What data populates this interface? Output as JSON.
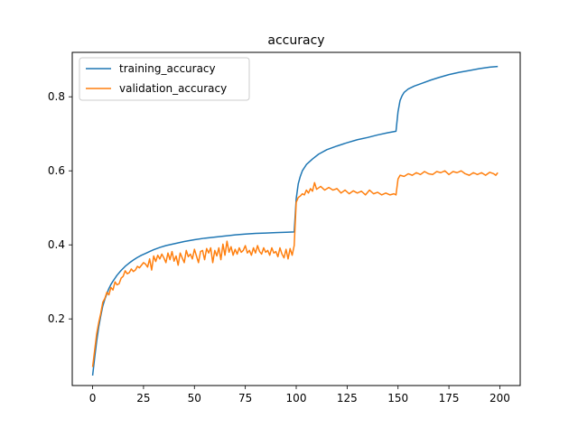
{
  "chart_data": {
    "type": "line",
    "title": "accuracy",
    "xlabel": "",
    "ylabel": "",
    "xlim": [
      -10,
      210
    ],
    "ylim": [
      0.02,
      0.92
    ],
    "xticks": [
      0,
      25,
      50,
      75,
      100,
      125,
      150,
      175,
      200
    ],
    "yticks": [
      0.2,
      0.4,
      0.6,
      0.8
    ],
    "grid": false,
    "legend_position": "upper-left",
    "series": [
      {
        "name": "training_accuracy",
        "color": "#1f77b4",
        "points": [
          [
            0,
            0.047
          ],
          [
            1,
            0.095
          ],
          [
            2,
            0.14
          ],
          [
            3,
            0.178
          ],
          [
            4,
            0.208
          ],
          [
            5,
            0.235
          ],
          [
            6,
            0.253
          ],
          [
            7,
            0.268
          ],
          [
            8,
            0.282
          ],
          [
            9,
            0.293
          ],
          [
            10,
            0.302
          ],
          [
            12,
            0.318
          ],
          [
            14,
            0.331
          ],
          [
            16,
            0.342
          ],
          [
            18,
            0.351
          ],
          [
            20,
            0.359
          ],
          [
            22,
            0.366
          ],
          [
            24,
            0.372
          ],
          [
            26,
            0.377
          ],
          [
            28,
            0.382
          ],
          [
            30,
            0.387
          ],
          [
            33,
            0.393
          ],
          [
            36,
            0.398
          ],
          [
            40,
            0.403
          ],
          [
            45,
            0.409
          ],
          [
            50,
            0.414
          ],
          [
            55,
            0.418
          ],
          [
            60,
            0.421
          ],
          [
            65,
            0.424
          ],
          [
            70,
            0.427
          ],
          [
            75,
            0.429
          ],
          [
            80,
            0.431
          ],
          [
            85,
            0.432
          ],
          [
            90,
            0.433
          ],
          [
            95,
            0.434
          ],
          [
            99,
            0.435
          ],
          [
            100,
            0.525
          ],
          [
            101,
            0.565
          ],
          [
            102,
            0.585
          ],
          [
            103,
            0.6
          ],
          [
            105,
            0.617
          ],
          [
            108,
            0.632
          ],
          [
            111,
            0.645
          ],
          [
            115,
            0.657
          ],
          [
            120,
            0.667
          ],
          [
            125,
            0.676
          ],
          [
            130,
            0.684
          ],
          [
            135,
            0.69
          ],
          [
            140,
            0.697
          ],
          [
            145,
            0.703
          ],
          [
            149,
            0.707
          ],
          [
            150,
            0.76
          ],
          [
            151,
            0.79
          ],
          [
            152,
            0.803
          ],
          [
            153,
            0.812
          ],
          [
            155,
            0.821
          ],
          [
            158,
            0.829
          ],
          [
            162,
            0.837
          ],
          [
            166,
            0.845
          ],
          [
            170,
            0.852
          ],
          [
            175,
            0.86
          ],
          [
            180,
            0.866
          ],
          [
            185,
            0.871
          ],
          [
            190,
            0.876
          ],
          [
            195,
            0.88
          ],
          [
            199,
            0.882
          ]
        ]
      },
      {
        "name": "validation_accuracy",
        "color": "#ff7f0e",
        "points": [
          [
            0,
            0.07
          ],
          [
            1,
            0.115
          ],
          [
            2,
            0.16
          ],
          [
            3,
            0.19
          ],
          [
            4,
            0.215
          ],
          [
            5,
            0.245
          ],
          [
            6,
            0.255
          ],
          [
            7,
            0.272
          ],
          [
            8,
            0.265
          ],
          [
            9,
            0.285
          ],
          [
            10,
            0.278
          ],
          [
            11,
            0.3
          ],
          [
            12,
            0.292
          ],
          [
            13,
            0.295
          ],
          [
            14,
            0.31
          ],
          [
            15,
            0.315
          ],
          [
            16,
            0.33
          ],
          [
            17,
            0.322
          ],
          [
            18,
            0.325
          ],
          [
            19,
            0.335
          ],
          [
            20,
            0.328
          ],
          [
            21,
            0.332
          ],
          [
            22,
            0.342
          ],
          [
            23,
            0.338
          ],
          [
            24,
            0.345
          ],
          [
            25,
            0.352
          ],
          [
            26,
            0.348
          ],
          [
            27,
            0.34
          ],
          [
            28,
            0.362
          ],
          [
            29,
            0.332
          ],
          [
            30,
            0.37
          ],
          [
            31,
            0.355
          ],
          [
            32,
            0.372
          ],
          [
            33,
            0.362
          ],
          [
            34,
            0.375
          ],
          [
            35,
            0.365
          ],
          [
            36,
            0.352
          ],
          [
            37,
            0.378
          ],
          [
            38,
            0.36
          ],
          [
            39,
            0.382
          ],
          [
            40,
            0.356
          ],
          [
            41,
            0.37
          ],
          [
            42,
            0.345
          ],
          [
            43,
            0.378
          ],
          [
            44,
            0.365
          ],
          [
            45,
            0.352
          ],
          [
            46,
            0.385
          ],
          [
            47,
            0.368
          ],
          [
            48,
            0.375
          ],
          [
            49,
            0.362
          ],
          [
            50,
            0.388
          ],
          [
            51,
            0.37
          ],
          [
            52,
            0.352
          ],
          [
            53,
            0.382
          ],
          [
            54,
            0.385
          ],
          [
            55,
            0.36
          ],
          [
            56,
            0.39
          ],
          [
            57,
            0.378
          ],
          [
            58,
            0.392
          ],
          [
            59,
            0.352
          ],
          [
            60,
            0.385
          ],
          [
            61,
            0.37
          ],
          [
            62,
            0.392
          ],
          [
            63,
            0.36
          ],
          [
            64,
            0.402
          ],
          [
            65,
            0.372
          ],
          [
            66,
            0.41
          ],
          [
            67,
            0.38
          ],
          [
            68,
            0.395
          ],
          [
            69,
            0.372
          ],
          [
            70,
            0.388
          ],
          [
            71,
            0.375
          ],
          [
            72,
            0.392
          ],
          [
            73,
            0.38
          ],
          [
            74,
            0.385
          ],
          [
            75,
            0.398
          ],
          [
            76,
            0.378
          ],
          [
            77,
            0.385
          ],
          [
            78,
            0.372
          ],
          [
            79,
            0.392
          ],
          [
            80,
            0.378
          ],
          [
            81,
            0.398
          ],
          [
            82,
            0.382
          ],
          [
            83,
            0.375
          ],
          [
            84,
            0.392
          ],
          [
            85,
            0.38
          ],
          [
            86,
            0.385
          ],
          [
            87,
            0.372
          ],
          [
            88,
            0.392
          ],
          [
            89,
            0.378
          ],
          [
            90,
            0.382
          ],
          [
            91,
            0.368
          ],
          [
            92,
            0.392
          ],
          [
            93,
            0.375
          ],
          [
            94,
            0.365
          ],
          [
            95,
            0.388
          ],
          [
            96,
            0.362
          ],
          [
            97,
            0.39
          ],
          [
            98,
            0.372
          ],
          [
            99,
            0.398
          ],
          [
            100,
            0.515
          ],
          [
            101,
            0.528
          ],
          [
            102,
            0.532
          ],
          [
            103,
            0.538
          ],
          [
            104,
            0.535
          ],
          [
            105,
            0.548
          ],
          [
            106,
            0.54
          ],
          [
            107,
            0.552
          ],
          [
            108,
            0.545
          ],
          [
            109,
            0.568
          ],
          [
            110,
            0.55
          ],
          [
            112,
            0.558
          ],
          [
            114,
            0.548
          ],
          [
            116,
            0.555
          ],
          [
            118,
            0.548
          ],
          [
            120,
            0.552
          ],
          [
            122,
            0.54
          ],
          [
            124,
            0.548
          ],
          [
            126,
            0.538
          ],
          [
            128,
            0.546
          ],
          [
            130,
            0.54
          ],
          [
            132,
            0.545
          ],
          [
            134,
            0.535
          ],
          [
            136,
            0.548
          ],
          [
            138,
            0.538
          ],
          [
            140,
            0.542
          ],
          [
            142,
            0.535
          ],
          [
            144,
            0.54
          ],
          [
            146,
            0.535
          ],
          [
            148,
            0.538
          ],
          [
            149,
            0.535
          ],
          [
            150,
            0.578
          ],
          [
            151,
            0.588
          ],
          [
            153,
            0.585
          ],
          [
            155,
            0.592
          ],
          [
            157,
            0.588
          ],
          [
            159,
            0.595
          ],
          [
            161,
            0.59
          ],
          [
            163,
            0.598
          ],
          [
            165,
            0.592
          ],
          [
            167,
            0.59
          ],
          [
            169,
            0.598
          ],
          [
            171,
            0.595
          ],
          [
            173,
            0.6
          ],
          [
            175,
            0.59
          ],
          [
            177,
            0.598
          ],
          [
            179,
            0.595
          ],
          [
            181,
            0.6
          ],
          [
            183,
            0.592
          ],
          [
            185,
            0.588
          ],
          [
            187,
            0.595
          ],
          [
            189,
            0.59
          ],
          [
            191,
            0.595
          ],
          [
            193,
            0.588
          ],
          [
            195,
            0.596
          ],
          [
            197,
            0.592
          ],
          [
            198,
            0.588
          ],
          [
            199,
            0.595
          ]
        ]
      }
    ]
  }
}
